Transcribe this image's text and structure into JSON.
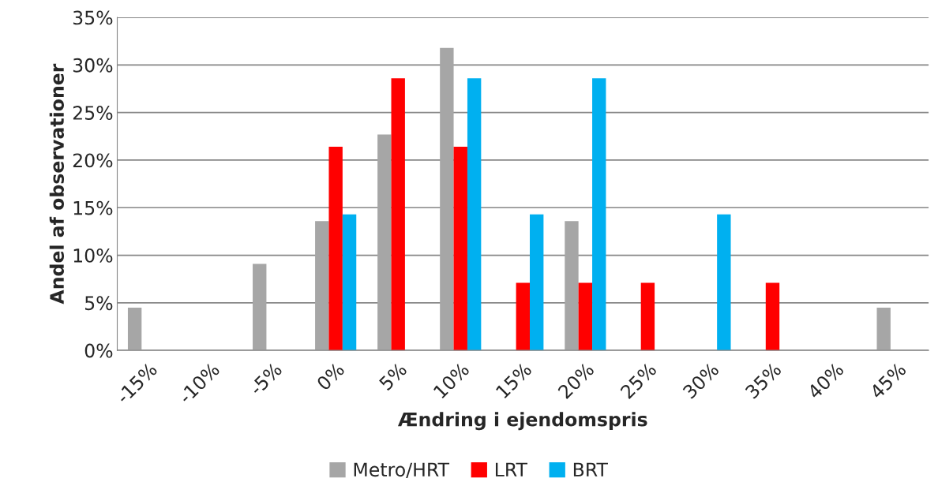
{
  "chart_data": {
    "type": "bar",
    "xlabel": "Ændring i ejendomspris",
    "ylabel": "Andel af observationer",
    "categories": [
      "-15%",
      "-10%",
      "-5%",
      "0%",
      "5%",
      "10%",
      "15%",
      "20%",
      "25%",
      "30%",
      "35%",
      "40%",
      "45%"
    ],
    "series": [
      {
        "name": "Metro/HRT",
        "color": "#a6a6a6",
        "values": [
          4.5,
          0,
          9.1,
          13.6,
          22.7,
          31.8,
          0,
          13.6,
          0,
          0,
          0,
          0,
          4.5
        ]
      },
      {
        "name": "LRT",
        "color": "#ff0000",
        "values": [
          0,
          0,
          0,
          21.4,
          28.6,
          21.4,
          7.1,
          7.1,
          7.1,
          0,
          7.1,
          0,
          0
        ]
      },
      {
        "name": "BRT",
        "color": "#00b0f0",
        "values": [
          0,
          0,
          0,
          14.3,
          0,
          28.6,
          14.3,
          28.6,
          0,
          14.3,
          0,
          0,
          0
        ]
      }
    ],
    "ylim": [
      0,
      35
    ],
    "yticks": [
      {
        "value": 0,
        "label": "0%"
      },
      {
        "value": 5,
        "label": "5%"
      },
      {
        "value": 10,
        "label": "10%"
      },
      {
        "value": 15,
        "label": "15%"
      },
      {
        "value": 20,
        "label": "20%"
      },
      {
        "value": 25,
        "label": "25%"
      },
      {
        "value": 30,
        "label": "30%"
      },
      {
        "value": 35,
        "label": "35%"
      }
    ],
    "grid": "y",
    "legend": "bottom"
  }
}
